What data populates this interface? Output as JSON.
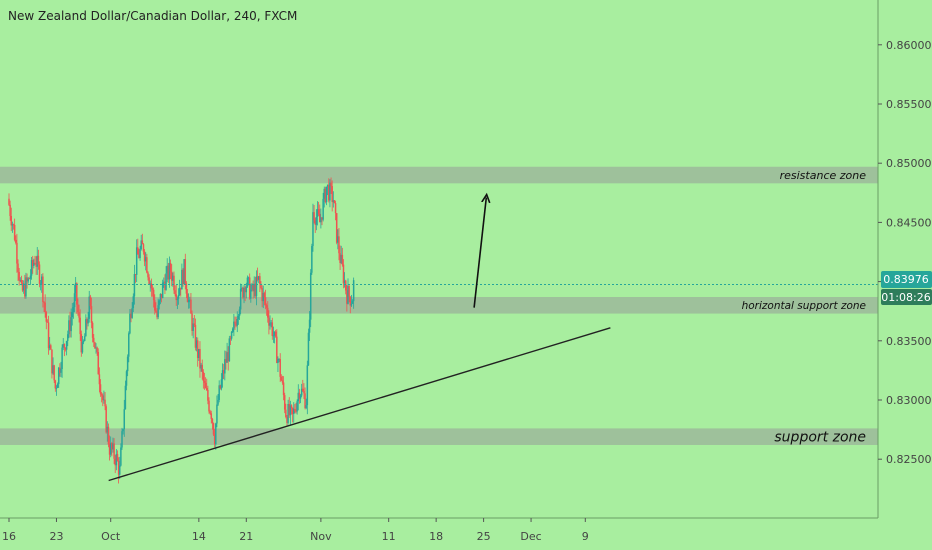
{
  "chart_data": {
    "type": "candlestick",
    "title": "New Zealand Dollar/Canadian Dollar, 240, FXCM",
    "ylim": [
      0.8225,
      0.8605
    ],
    "y_ticks": [
      "0.86000",
      "0.85500",
      "0.85000",
      "0.84500",
      "0.84000",
      "0.83500",
      "0.83000",
      "0.82500"
    ],
    "x_ticks": [
      {
        "label": "16",
        "day": 0
      },
      {
        "label": "23",
        "day": 7
      },
      {
        "label": "Oct",
        "day": 15
      },
      {
        "label": "14",
        "day": 28
      },
      {
        "label": "21",
        "day": 35
      },
      {
        "label": "Nov",
        "day": 46
      },
      {
        "label": "11",
        "day": 56
      },
      {
        "label": "18",
        "day": 63
      },
      {
        "label": "25",
        "day": 70
      },
      {
        "label": "Dec",
        "day": 77
      },
      {
        "label": "9",
        "day": 85
      }
    ],
    "current_price": {
      "label": "0.83976",
      "value": 0.83976,
      "color": "#26a69a"
    },
    "countdown": {
      "label": "01:08:26",
      "color": "#2e7d5b"
    },
    "zones": [
      {
        "label": "resistance zone",
        "from": 0.8483,
        "to": 0.8497
      },
      {
        "label": "horizontal support zone",
        "from": 0.8373,
        "to": 0.8387
      },
      {
        "label": "support zone",
        "from": 0.8262,
        "to": 0.8276
      }
    ],
    "trendline": {
      "start": {
        "day": 14.7,
        "value": 0.8232
      },
      "end": {
        "day": 88.7,
        "value": 0.8361
      }
    },
    "arrow": {
      "start": {
        "day": 68.6,
        "value": 0.8378
      },
      "end": {
        "day": 70.4,
        "value": 0.8471
      }
    },
    "ohlc_waypoints": [
      {
        "day": 0,
        "value": 0.847
      },
      {
        "day": 1,
        "value": 0.844
      },
      {
        "day": 2,
        "value": 0.839
      },
      {
        "day": 3,
        "value": 0.84
      },
      {
        "day": 4,
        "value": 0.842
      },
      {
        "day": 5,
        "value": 0.84
      },
      {
        "day": 6,
        "value": 0.835
      },
      {
        "day": 7,
        "value": 0.831
      },
      {
        "day": 8,
        "value": 0.834
      },
      {
        "day": 9,
        "value": 0.836
      },
      {
        "day": 10,
        "value": 0.839
      },
      {
        "day": 11,
        "value": 0.834
      },
      {
        "day": 12,
        "value": 0.838
      },
      {
        "day": 13,
        "value": 0.834
      },
      {
        "day": 14,
        "value": 0.83
      },
      {
        "day": 15,
        "value": 0.826
      },
      {
        "day": 16,
        "value": 0.825
      },
      {
        "day": 16.5,
        "value": 0.824
      },
      {
        "day": 17,
        "value": 0.828
      },
      {
        "day": 18,
        "value": 0.837
      },
      {
        "day": 19,
        "value": 0.842
      },
      {
        "day": 20,
        "value": 0.843
      },
      {
        "day": 21,
        "value": 0.84
      },
      {
        "day": 22,
        "value": 0.837
      },
      {
        "day": 23,
        "value": 0.84
      },
      {
        "day": 24,
        "value": 0.841
      },
      {
        "day": 25,
        "value": 0.839
      },
      {
        "day": 26,
        "value": 0.841
      },
      {
        "day": 27,
        "value": 0.837
      },
      {
        "day": 28,
        "value": 0.834
      },
      {
        "day": 29,
        "value": 0.831
      },
      {
        "day": 30,
        "value": 0.829
      },
      {
        "day": 30.5,
        "value": 0.827
      },
      {
        "day": 31,
        "value": 0.83
      },
      {
        "day": 32,
        "value": 0.833
      },
      {
        "day": 33,
        "value": 0.835
      },
      {
        "day": 34,
        "value": 0.838
      },
      {
        "day": 35,
        "value": 0.84
      },
      {
        "day": 36,
        "value": 0.839
      },
      {
        "day": 37,
        "value": 0.84
      },
      {
        "day": 38,
        "value": 0.838
      },
      {
        "day": 39,
        "value": 0.836
      },
      {
        "day": 40,
        "value": 0.833
      },
      {
        "day": 41,
        "value": 0.829
      },
      {
        "day": 42,
        "value": 0.8285
      },
      {
        "day": 43,
        "value": 0.831
      },
      {
        "day": 44,
        "value": 0.83
      },
      {
        "day": 44.6,
        "value": 0.839
      },
      {
        "day": 45,
        "value": 0.846
      },
      {
        "day": 46,
        "value": 0.845
      },
      {
        "day": 47,
        "value": 0.848
      },
      {
        "day": 48,
        "value": 0.847
      },
      {
        "day": 48.5,
        "value": 0.844
      },
      {
        "day": 49,
        "value": 0.842
      },
      {
        "day": 50,
        "value": 0.839
      },
      {
        "day": 50.8,
        "value": 0.8385
      },
      {
        "day": 51,
        "value": 0.8398
      }
    ]
  }
}
